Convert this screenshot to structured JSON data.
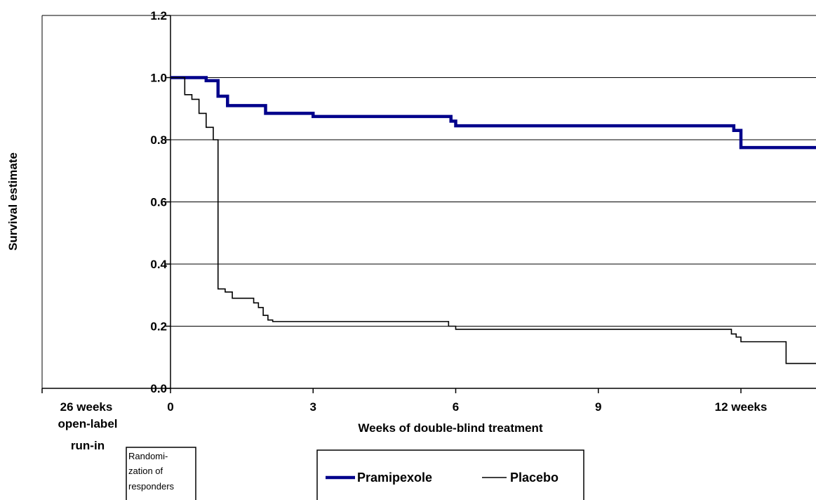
{
  "chart_data": {
    "type": "line",
    "title": "",
    "xlabel": "Weeks of double-blind treatment",
    "ylabel": "Survival estimate",
    "xlim": [
      0,
      14.8
    ],
    "ylim": [
      0,
      1.2
    ],
    "grid": true,
    "legend_position": "bottom",
    "y_ticks": [
      "0.0",
      "0.2",
      "0.4",
      "0.6",
      "0.8",
      "1.0",
      "1.2"
    ],
    "x_ticks": [
      {
        "value": 0,
        "label": "0"
      },
      {
        "value": 3,
        "label": "3"
      },
      {
        "value": 6,
        "label": "6"
      },
      {
        "value": 9,
        "label": "9"
      },
      {
        "value": 12,
        "label": "12 weeks"
      }
    ],
    "run_in_label": [
      "26  weeks",
      "open-label",
      "run-in"
    ],
    "randomization_note": [
      "Randomi-",
      "zation of",
      "responders"
    ],
    "series": [
      {
        "name": "Pramipexole",
        "color": "#00008b",
        "line_style": "thick",
        "x": [
          0,
          0.75,
          1.0,
          1.2,
          2.0,
          3.0,
          5.9,
          6.0,
          11.85,
          12.0,
          14.8
        ],
        "y": [
          1.0,
          0.99,
          0.94,
          0.91,
          0.885,
          0.875,
          0.86,
          0.845,
          0.83,
          0.775,
          0.775
        ]
      },
      {
        "name": "Placebo",
        "color": "#000000",
        "line_style": "thin",
        "x": [
          0,
          0.3,
          0.45,
          0.6,
          0.75,
          0.9,
          1.0,
          1.15,
          1.3,
          1.75,
          1.85,
          1.95,
          2.05,
          2.15,
          5.85,
          6.0,
          11.8,
          11.9,
          12.0,
          12.95,
          14.8
        ],
        "y": [
          1.0,
          0.945,
          0.93,
          0.885,
          0.84,
          0.8,
          0.32,
          0.31,
          0.29,
          0.275,
          0.26,
          0.235,
          0.22,
          0.215,
          0.2,
          0.19,
          0.175,
          0.165,
          0.15,
          0.08,
          0.08
        ]
      }
    ]
  }
}
